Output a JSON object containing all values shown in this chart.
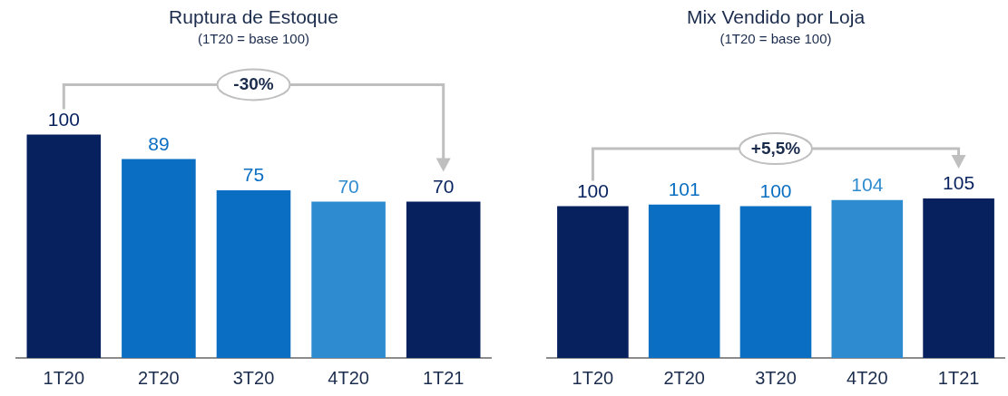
{
  "chart_data": [
    {
      "type": "bar",
      "title": "Ruptura de Estoque",
      "subtitle": "(1T20 = base 100)",
      "categories": [
        "1T20",
        "2T20",
        "3T20",
        "4T20",
        "1T21"
      ],
      "values": [
        100,
        89,
        75,
        70,
        70
      ],
      "colors": [
        "#06215e",
        "#0a6fc2",
        "#0a6fc2",
        "#2e8bd0",
        "#06215e"
      ],
      "data_labels": true,
      "annotations": [
        "-30%"
      ]
    },
    {
      "type": "bar",
      "title": "Mix Vendido por Loja",
      "subtitle": "(1T20 = base 100)",
      "categories": [
        "1T20",
        "2T20",
        "3T20",
        "4T20",
        "1T21"
      ],
      "values": [
        100,
        101,
        100,
        104,
        105
      ],
      "colors": [
        "#06215e",
        "#0a6fc2",
        "#0a6fc2",
        "#2e8bd0",
        "#06215e"
      ],
      "data_labels": true,
      "annotations": [
        "+5,5%"
      ]
    }
  ]
}
